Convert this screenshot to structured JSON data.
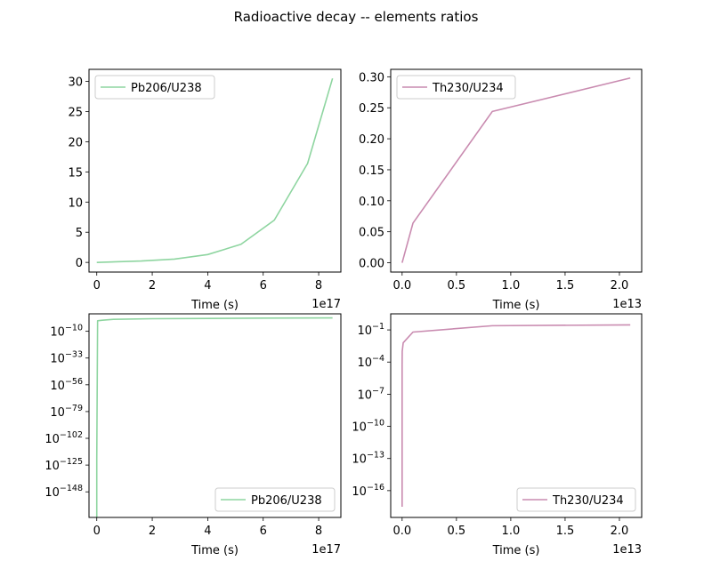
{
  "figure": {
    "title": "Radioactive decay -- elements ratios"
  },
  "colors": {
    "pb": "#8ed5a0",
    "th": "#c98bb0"
  },
  "chart_data": [
    {
      "type": "line",
      "xlabel": "Time (s)",
      "x_offset_text": "1e17",
      "xlim": [
        -0.28,
        8.8
      ],
      "ylim": [
        -1.6,
        32.0
      ],
      "xticks": [
        0,
        2,
        4,
        6,
        8
      ],
      "xtick_labels": [
        "0",
        "2",
        "4",
        "6",
        "8"
      ],
      "yticks": [
        0,
        5,
        10,
        15,
        20,
        25,
        30
      ],
      "ytick_labels": [
        "0",
        "5",
        "10",
        "15",
        "20",
        "25",
        "30"
      ],
      "legend_loc": "top-left",
      "series": [
        {
          "name": "Pb206/U238",
          "color": "#8ed5a0",
          "x": [
            0,
            1.6,
            2.8,
            4.0,
            5.2,
            6.4,
            7.6,
            8.5
          ],
          "y": [
            0.0,
            0.23,
            0.55,
            1.3,
            3.0,
            7.0,
            16.4,
            30.5
          ]
        }
      ]
    },
    {
      "type": "line",
      "xlabel": "Time (s)",
      "x_offset_text": "1e13",
      "xlim": [
        -0.105,
        2.205
      ],
      "ylim": [
        -0.015,
        0.312
      ],
      "xticks": [
        0,
        0.5,
        1.0,
        1.5,
        2.0
      ],
      "xtick_labels": [
        "0.0",
        "0.5",
        "1.0",
        "1.5",
        "2.0"
      ],
      "yticks": [
        0,
        0.05,
        0.1,
        0.15,
        0.2,
        0.25,
        0.3
      ],
      "ytick_labels": [
        "0.00",
        "0.05",
        "0.10",
        "0.15",
        "0.20",
        "0.25",
        "0.30"
      ],
      "legend_loc": "top-left",
      "series": [
        {
          "name": "Th230/U234",
          "color": "#c98bb0",
          "x": [
            0,
            0.1,
            0.83,
            2.1
          ],
          "y": [
            0.0,
            0.064,
            0.244,
            0.298
          ]
        }
      ]
    },
    {
      "type": "line",
      "yscale": "log",
      "xlabel": "Time (s)",
      "x_offset_text": "1e17",
      "xlim": [
        -0.28,
        8.8
      ],
      "ylim": [
        -170,
        5
      ],
      "xticks": [
        0,
        2,
        4,
        6,
        8
      ],
      "xtick_labels": [
        "0",
        "2",
        "4",
        "6",
        "8"
      ],
      "yticks": [
        -10,
        -33,
        -56,
        -79,
        -102,
        -125,
        -148
      ],
      "ytick_base": "10",
      "ytick_exponents": [
        "−10",
        "−33",
        "−56",
        "−79",
        "−102",
        "−125",
        "−148"
      ],
      "legend_loc": "bottom-right",
      "series": [
        {
          "name": "Pb206/U238",
          "color": "#8ed5a0",
          "x": [
            0,
            0,
            0.03,
            0.2,
            0.6,
            2.0,
            4.0,
            6.0,
            8.5
          ],
          "y_log10": [
            -170,
            -120,
            -1,
            -0.5,
            0.3,
            0.8,
            1.0,
            1.3,
            1.5
          ]
        }
      ]
    },
    {
      "type": "line",
      "yscale": "log",
      "xlabel": "Time (s)",
      "x_offset_text": "1e13",
      "xlim": [
        -0.105,
        2.205
      ],
      "ylim": [
        -18.5,
        0.5
      ],
      "xticks": [
        0,
        0.5,
        1.0,
        1.5,
        2.0
      ],
      "xtick_labels": [
        "0.0",
        "0.5",
        "1.0",
        "1.5",
        "2.0"
      ],
      "yticks": [
        -1,
        -4,
        -7,
        -10,
        -13,
        -16
      ],
      "ytick_base": "10",
      "ytick_exponents": [
        "−1",
        "−4",
        "−7",
        "−10",
        "−13",
        "−16"
      ],
      "legend_loc": "bottom-right",
      "series": [
        {
          "name": "Th230/U234",
          "color": "#c98bb0",
          "x": [
            0,
            0,
            0.001,
            0.01,
            0.1,
            0.83,
            2.1
          ],
          "y_log10": [
            -17.5,
            -4.3,
            -3.0,
            -2.2,
            -1.2,
            -0.61,
            -0.53
          ]
        }
      ]
    }
  ]
}
